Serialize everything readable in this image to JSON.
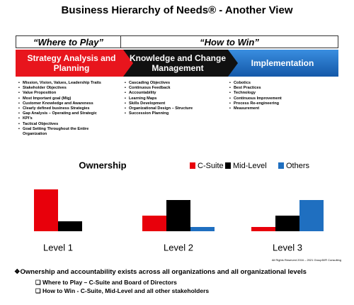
{
  "header": {
    "title": "Business Hierarchy of Needs® - Another View"
  },
  "phases": [
    {
      "heading": "“Where to Play”",
      "label": "Strategy Analysis and Planning",
      "items": [
        "Mission, Vision, Values, Leadership Traits",
        "Stakeholder Objectives",
        "Value Proposition",
        "Most Important goal (Mig)",
        "Customer Knowledge and Awareness",
        "Clearly defined business Strategies",
        "Gap Analysis – Operating and Strategic",
        "KPI’s",
        "Tactical Objectives",
        "Goal Setting Throughout the Entire Organization"
      ]
    },
    {
      "heading": "“How to Win”",
      "label": "Knowledge and Change Management",
      "items": [
        "Cascading Objectives",
        "Continuous Feedback",
        "Accountability",
        "Learning Maps",
        "Skills Development",
        "Organizational Design – Structure",
        "Succession Planning"
      ]
    },
    {
      "label": "Implementation",
      "items": [
        "Cobotics",
        "Best Practices",
        "Technology",
        "Continuous Improvement",
        "Process Re-engineering",
        "Measurement"
      ]
    }
  ],
  "chart_data": {
    "type": "bar",
    "title": "Ownership",
    "categories": [
      "Level 1",
      "Level 2",
      "Level 3"
    ],
    "series": [
      {
        "name": "C-Suite",
        "color": "#e8000b",
        "values": [
          59,
          22,
          6
        ]
      },
      {
        "name": "Mid-Level",
        "color": "#000000",
        "values": [
          14,
          44,
          22
        ]
      },
      {
        "name": "Others",
        "color": "#1f6fc0",
        "values": [
          null,
          6,
          44
        ]
      }
    ],
    "ylim": [
      0,
      60
    ]
  },
  "copyright": "All Rights Reserved 2016 – 2021 Group50® Consulting",
  "summary": {
    "headline": "Ownership and accountability exists across all organizations and all organizational levels",
    "points": [
      "Where to Play – C-Suite and Board of Directors",
      "How to Win -  C-Suite, Mid-Level and all other stakeholders"
    ]
  }
}
